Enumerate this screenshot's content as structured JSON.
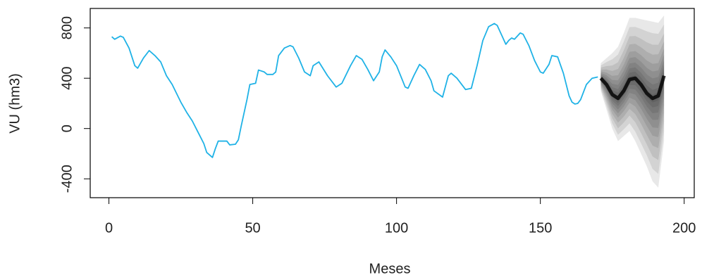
{
  "chart_data": {
    "type": "line",
    "xlabel": "Meses",
    "ylabel": "VU (hm3)",
    "series": [
      {
        "color": "#1fb2e6",
        "x": [
          1,
          2,
          4,
          5,
          7,
          9,
          10,
          12,
          14,
          16,
          18,
          20,
          22,
          25,
          27,
          29,
          31,
          33,
          34,
          36,
          37,
          38,
          41,
          42,
          44,
          45,
          46,
          48,
          49,
          51,
          52,
          54,
          55,
          57,
          58,
          59,
          61,
          63,
          64,
          66,
          68,
          70,
          71,
          73,
          76,
          79,
          81,
          84,
          86,
          88,
          90,
          92,
          94,
          95,
          96,
          98,
          100,
          103,
          104,
          106,
          108,
          110,
          112,
          113,
          116,
          118,
          119,
          121,
          124,
          126,
          128,
          130,
          132,
          134,
          135,
          137,
          138,
          139,
          140,
          141,
          143,
          144,
          146,
          148,
          150,
          151,
          153,
          154,
          156,
          158,
          160,
          161,
          162,
          163,
          164,
          166,
          168,
          170
        ],
        "values": [
          730,
          710,
          735,
          725,
          640,
          500,
          480,
          560,
          620,
          580,
          530,
          420,
          350,
          210,
          130,
          60,
          -30,
          -120,
          -190,
          -230,
          -160,
          -100,
          -100,
          -130,
          -125,
          -90,
          20,
          230,
          350,
          360,
          465,
          450,
          430,
          430,
          450,
          580,
          640,
          660,
          650,
          560,
          450,
          420,
          500,
          530,
          420,
          330,
          360,
          500,
          580,
          550,
          470,
          380,
          450,
          570,
          625,
          570,
          500,
          330,
          320,
          420,
          510,
          470,
          380,
          300,
          250,
          420,
          440,
          400,
          310,
          320,
          500,
          700,
          810,
          835,
          820,
          720,
          670,
          700,
          720,
          710,
          760,
          750,
          660,
          540,
          450,
          440,
          510,
          580,
          570,
          440,
          260,
          210,
          195,
          200,
          230,
          350,
          400,
          410
        ]
      }
    ],
    "forecast": {
      "color": "#000000",
      "x": [
        171,
        173,
        175,
        177,
        179,
        181,
        183,
        185,
        187,
        189,
        191,
        193
      ],
      "median": [
        400,
        350,
        270,
        240,
        300,
        390,
        400,
        350,
        280,
        240,
        260,
        420
      ],
      "upper": [
        520,
        560,
        600,
        650,
        760,
        880,
        880,
        870,
        860,
        850,
        840,
        900
      ],
      "lower": [
        300,
        150,
        0,
        -100,
        -60,
        -20,
        -100,
        -200,
        -300,
        -420,
        -470,
        -100
      ]
    },
    "xlim": [
      -6.5,
      203.5
    ],
    "ylim": [
      -550,
      955
    ],
    "xticks": [
      0,
      50,
      100,
      150,
      200
    ],
    "yticks": [
      -400,
      0,
      400,
      800
    ]
  }
}
